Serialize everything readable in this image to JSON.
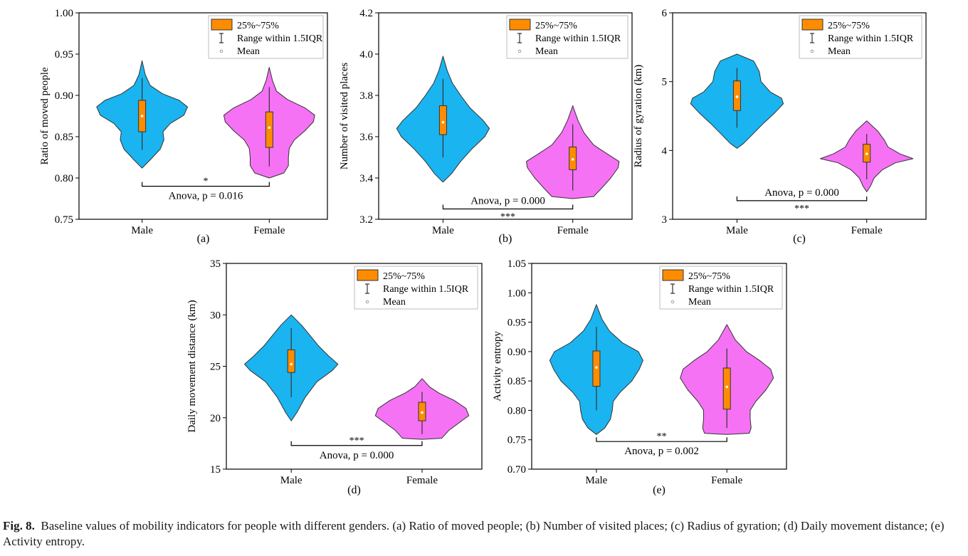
{
  "legend": {
    "box_label": "25%~75%",
    "whisker_label": "Range within 1.5IQR",
    "mean_label": "Mean"
  },
  "colors": {
    "male": "#1ab4f0",
    "female": "#f572f5",
    "box": "#ff8c00",
    "axis": "#000000"
  },
  "caption": {
    "label": "Fig. 8.",
    "text": "Baseline values of mobility indicators for people with different genders. (a) Ratio of moved people; (b) Number of visited places; (c) Radius of gyration; (d) Daily movement distance; (e) Activity entropy."
  },
  "chart_data": [
    {
      "panel": "(a)",
      "type": "violin",
      "ylabel": "Ratio of moved people",
      "categories": [
        "Male",
        "Female"
      ],
      "ylim": [
        0.75,
        1.0
      ],
      "yticks": [
        0.75,
        0.8,
        0.85,
        0.9,
        0.95,
        1.0
      ],
      "ytick_labels": [
        "0.75",
        "0.80",
        "0.85",
        "0.90",
        "0.95",
        "1.00"
      ],
      "series": [
        {
          "name": "Male",
          "min": 0.812,
          "max": 0.942,
          "q1": 0.856,
          "q3": 0.894,
          "mean": 0.875,
          "wlo": 0.834,
          "whi": 0.921,
          "profile": [
            [
              0.812,
              0
            ],
            [
              0.822,
              0.18
            ],
            [
              0.835,
              0.4
            ],
            [
              0.846,
              0.48
            ],
            [
              0.856,
              0.46
            ],
            [
              0.866,
              0.62
            ],
            [
              0.876,
              0.92
            ],
            [
              0.886,
              1.0
            ],
            [
              0.894,
              0.82
            ],
            [
              0.902,
              0.45
            ],
            [
              0.912,
              0.18
            ],
            [
              0.925,
              0.07
            ],
            [
              0.942,
              0
            ]
          ]
        },
        {
          "name": "Female",
          "min": 0.8,
          "max": 0.934,
          "q1": 0.837,
          "q3": 0.88,
          "mean": 0.861,
          "wlo": 0.814,
          "whi": 0.91,
          "profile": [
            [
              0.8,
              0
            ],
            [
              0.806,
              0.32
            ],
            [
              0.815,
              0.42
            ],
            [
              0.825,
              0.42
            ],
            [
              0.836,
              0.44
            ],
            [
              0.846,
              0.55
            ],
            [
              0.857,
              0.78
            ],
            [
              0.868,
              0.97
            ],
            [
              0.876,
              1.0
            ],
            [
              0.885,
              0.78
            ],
            [
              0.895,
              0.4
            ],
            [
              0.905,
              0.16
            ],
            [
              0.918,
              0.07
            ],
            [
              0.934,
              0
            ]
          ]
        }
      ],
      "annotation": {
        "stars": "*",
        "text": "Anova, p = 0.016",
        "y": 0.79,
        "stars_above": true
      }
    },
    {
      "panel": "(b)",
      "type": "violin",
      "ylabel": "Number of visited places",
      "categories": [
        "Male",
        "Female"
      ],
      "ylim": [
        3.2,
        4.2
      ],
      "yticks": [
        3.2,
        3.4,
        3.6,
        3.8,
        4.0,
        4.2
      ],
      "ytick_labels": [
        "3.2",
        "3.4",
        "3.6",
        "3.8",
        "4.0",
        "4.2"
      ],
      "series": [
        {
          "name": "Male",
          "min": 3.38,
          "max": 3.99,
          "q1": 3.61,
          "q3": 3.75,
          "mean": 3.67,
          "wlo": 3.5,
          "whi": 3.88,
          "profile": [
            [
              3.38,
              0
            ],
            [
              3.42,
              0.18
            ],
            [
              3.48,
              0.38
            ],
            [
              3.54,
              0.62
            ],
            [
              3.6,
              0.9
            ],
            [
              3.64,
              1.0
            ],
            [
              3.68,
              0.86
            ],
            [
              3.74,
              0.58
            ],
            [
              3.8,
              0.38
            ],
            [
              3.86,
              0.2
            ],
            [
              3.92,
              0.09
            ],
            [
              3.99,
              0
            ]
          ]
        },
        {
          "name": "Female",
          "min": 3.3,
          "max": 3.75,
          "q1": 3.44,
          "q3": 3.55,
          "mean": 3.49,
          "wlo": 3.34,
          "whi": 3.66,
          "profile": [
            [
              3.3,
              0
            ],
            [
              3.31,
              0.45
            ],
            [
              3.35,
              0.62
            ],
            [
              3.4,
              0.82
            ],
            [
              3.45,
              0.98
            ],
            [
              3.48,
              1.0
            ],
            [
              3.52,
              0.72
            ],
            [
              3.56,
              0.45
            ],
            [
              3.62,
              0.24
            ],
            [
              3.68,
              0.11
            ],
            [
              3.75,
              0
            ]
          ]
        }
      ],
      "annotation": {
        "stars": "***",
        "text": "Anova, p = 0.000",
        "y": 3.25,
        "stars_above": false
      }
    },
    {
      "panel": "(c)",
      "type": "violin",
      "ylabel": "Radius of gyration (km)",
      "categories": [
        "Male",
        "Female"
      ],
      "ylim": [
        3,
        6
      ],
      "yticks": [
        3,
        4,
        5,
        6
      ],
      "ytick_labels": [
        "3",
        "4",
        "5",
        "6"
      ],
      "series": [
        {
          "name": "Male",
          "min": 4.03,
          "max": 5.4,
          "q1": 4.58,
          "q3": 5.01,
          "mean": 4.78,
          "wlo": 4.33,
          "whi": 5.2,
          "profile": [
            [
              4.03,
              0
            ],
            [
              4.1,
              0.14
            ],
            [
              4.25,
              0.36
            ],
            [
              4.4,
              0.58
            ],
            [
              4.55,
              0.82
            ],
            [
              4.68,
              1.0
            ],
            [
              4.76,
              0.96
            ],
            [
              4.85,
              0.72
            ],
            [
              5.0,
              0.52
            ],
            [
              5.15,
              0.48
            ],
            [
              5.3,
              0.36
            ],
            [
              5.4,
              0
            ]
          ]
        },
        {
          "name": "Female",
          "min": 3.4,
          "max": 4.43,
          "q1": 3.83,
          "q3": 4.09,
          "mean": 3.95,
          "wlo": 3.58,
          "whi": 4.24,
          "profile": [
            [
              3.4,
              0
            ],
            [
              3.48,
              0.08
            ],
            [
              3.6,
              0.16
            ],
            [
              3.72,
              0.34
            ],
            [
              3.82,
              0.62
            ],
            [
              3.88,
              1.0
            ],
            [
              3.95,
              0.72
            ],
            [
              4.05,
              0.46
            ],
            [
              4.15,
              0.38
            ],
            [
              4.28,
              0.24
            ],
            [
              4.43,
              0
            ]
          ]
        }
      ],
      "annotation": {
        "stars": "***",
        "text": "Anova, p = 0.000",
        "y": 3.27,
        "stars_above": false
      }
    },
    {
      "panel": "(d)",
      "type": "violin",
      "ylabel": "Daily movement distance (km)",
      "categories": [
        "Male",
        "Female"
      ],
      "ylim": [
        15,
        35
      ],
      "yticks": [
        15,
        20,
        25,
        30,
        35
      ],
      "ytick_labels": [
        "15",
        "20",
        "25",
        "30",
        "35"
      ],
      "series": [
        {
          "name": "Male",
          "min": 19.7,
          "max": 30.0,
          "q1": 24.4,
          "q3": 26.6,
          "mean": 25.2,
          "wlo": 22.0,
          "whi": 28.7,
          "profile": [
            [
              19.7,
              0
            ],
            [
              20.5,
              0.12
            ],
            [
              22.0,
              0.3
            ],
            [
              23.5,
              0.55
            ],
            [
              24.6,
              0.88
            ],
            [
              25.2,
              1.0
            ],
            [
              26.0,
              0.8
            ],
            [
              27.0,
              0.58
            ],
            [
              28.0,
              0.4
            ],
            [
              29.0,
              0.22
            ],
            [
              30.0,
              0
            ]
          ]
        },
        {
          "name": "Female",
          "min": 17.9,
          "max": 23.8,
          "q1": 19.7,
          "q3": 21.5,
          "mean": 20.5,
          "wlo": 18.4,
          "whi": 22.5,
          "profile": [
            [
              17.9,
              0
            ],
            [
              18.0,
              0.42
            ],
            [
              18.8,
              0.58
            ],
            [
              19.6,
              0.82
            ],
            [
              20.2,
              1.0
            ],
            [
              20.9,
              0.94
            ],
            [
              21.7,
              0.68
            ],
            [
              22.4,
              0.36
            ],
            [
              23.0,
              0.16
            ],
            [
              23.8,
              0
            ]
          ]
        }
      ],
      "annotation": {
        "stars": "***",
        "text": "Anova, p = 0.000",
        "y": 17.3,
        "stars_above": true
      }
    },
    {
      "panel": "(e)",
      "type": "violin",
      "ylabel": "Activity entropy",
      "categories": [
        "Male",
        "Female"
      ],
      "ylim": [
        0.7,
        1.05
      ],
      "yticks": [
        0.7,
        0.75,
        0.8,
        0.85,
        0.9,
        0.95,
        1.0,
        1.05
      ],
      "ytick_labels": [
        "0.70",
        "0.75",
        "0.80",
        "0.85",
        "0.90",
        "0.95",
        "1.00",
        "1.05"
      ],
      "series": [
        {
          "name": "Male",
          "min": 0.759,
          "max": 0.98,
          "q1": 0.841,
          "q3": 0.901,
          "mean": 0.873,
          "wlo": 0.8,
          "whi": 0.942,
          "profile": [
            [
              0.759,
              0
            ],
            [
              0.77,
              0.18
            ],
            [
              0.785,
              0.3
            ],
            [
              0.8,
              0.34
            ],
            [
              0.815,
              0.36
            ],
            [
              0.83,
              0.5
            ],
            [
              0.85,
              0.76
            ],
            [
              0.87,
              0.92
            ],
            [
              0.885,
              1.0
            ],
            [
              0.9,
              0.9
            ],
            [
              0.915,
              0.56
            ],
            [
              0.935,
              0.28
            ],
            [
              0.955,
              0.12
            ],
            [
              0.98,
              0
            ]
          ]
        },
        {
          "name": "Female",
          "min": 0.759,
          "max": 0.946,
          "q1": 0.802,
          "q3": 0.872,
          "mean": 0.84,
          "wlo": 0.77,
          "whi": 0.905,
          "profile": [
            [
              0.759,
              0
            ],
            [
              0.761,
              0.48
            ],
            [
              0.77,
              0.52
            ],
            [
              0.785,
              0.5
            ],
            [
              0.8,
              0.5
            ],
            [
              0.815,
              0.62
            ],
            [
              0.835,
              0.84
            ],
            [
              0.855,
              1.0
            ],
            [
              0.87,
              0.94
            ],
            [
              0.885,
              0.7
            ],
            [
              0.9,
              0.42
            ],
            [
              0.92,
              0.18
            ],
            [
              0.946,
              0
            ]
          ]
        }
      ],
      "annotation": {
        "stars": "**",
        "text": "Anova, p = 0.002",
        "y": 0.747,
        "stars_above": true
      }
    }
  ]
}
